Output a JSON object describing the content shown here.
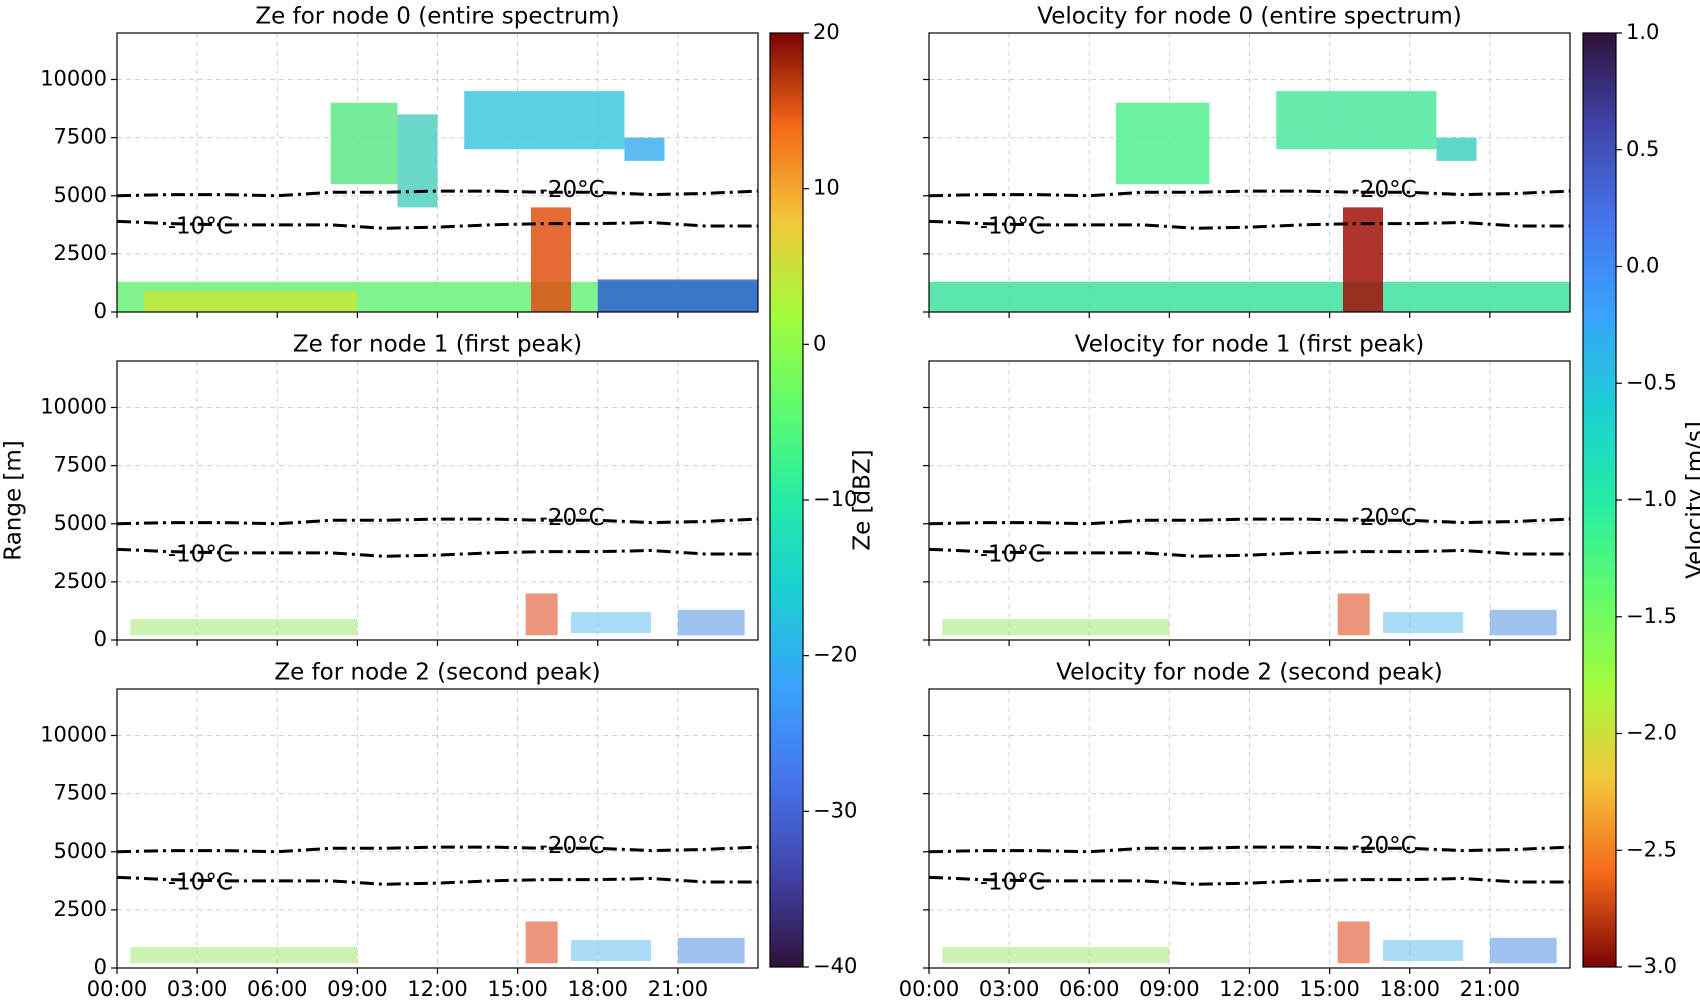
{
  "chart_data": [
    {
      "type": "line",
      "title": "Ze for node 0 (entire spectrum)",
      "xlim": [
        0,
        24
      ],
      "xticks": [
        0,
        3,
        6,
        9,
        12,
        15,
        18,
        21
      ],
      "ylim": [
        0,
        12000
      ],
      "yticks": [
        0,
        2500,
        5000,
        7500,
        10000
      ],
      "grid": true,
      "x": [
        0,
        2,
        4,
        6,
        8,
        10,
        12,
        14,
        16,
        18,
        20,
        22,
        24
      ],
      "series": [
        {
          "name": "-20°C",
          "color": "#000000",
          "values": [
            5000,
            5050,
            5050,
            5000,
            5150,
            5150,
            5200,
            5200,
            5150,
            5150,
            5050,
            5100,
            5200
          ]
        },
        {
          "name": "-10°C",
          "color": "#000000",
          "values": [
            3900,
            3800,
            3750,
            3750,
            3750,
            3600,
            3650,
            3750,
            3800,
            3800,
            3850,
            3700,
            3700
          ]
        }
      ]
    },
    {
      "type": "line",
      "title": "Velocity for node 0 (entire spectrum)",
      "xlim": [
        0,
        24
      ],
      "xticks": [
        0,
        3,
        6,
        9,
        12,
        15,
        18,
        21
      ],
      "ylim": [
        0,
        12000
      ],
      "yticks": [
        0,
        2500,
        5000,
        7500,
        10000
      ],
      "grid": true,
      "x": [
        0,
        2,
        4,
        6,
        8,
        10,
        12,
        14,
        16,
        18,
        20,
        22,
        24
      ],
      "series": [
        {
          "name": "-20°C",
          "color": "#000000",
          "values": [
            5000,
            5050,
            5050,
            5000,
            5150,
            5150,
            5200,
            5200,
            5150,
            5150,
            5050,
            5100,
            5200
          ]
        },
        {
          "name": "-10°C",
          "color": "#000000",
          "values": [
            3900,
            3800,
            3750,
            3750,
            3750,
            3600,
            3650,
            3750,
            3800,
            3800,
            3850,
            3700,
            3700
          ]
        }
      ]
    },
    {
      "type": "line",
      "title": "Ze for node 1 (first peak)",
      "ylabel": "Range [m]",
      "xlim": [
        0,
        24
      ],
      "xticks": [
        0,
        3,
        6,
        9,
        12,
        15,
        18,
        21
      ],
      "ylim": [
        0,
        12000
      ],
      "yticks": [
        0,
        2500,
        5000,
        7500,
        10000
      ],
      "grid": true,
      "x": [
        0,
        2,
        4,
        6,
        8,
        10,
        12,
        14,
        16,
        18,
        20,
        22,
        24
      ],
      "series": [
        {
          "name": "-20°C",
          "color": "#000000",
          "values": [
            5000,
            5050,
            5050,
            5000,
            5150,
            5150,
            5200,
            5200,
            5150,
            5150,
            5050,
            5100,
            5200
          ]
        },
        {
          "name": "-10°C",
          "color": "#000000",
          "values": [
            3900,
            3800,
            3750,
            3750,
            3750,
            3600,
            3650,
            3750,
            3800,
            3800,
            3850,
            3700,
            3700
          ]
        }
      ]
    },
    {
      "type": "line",
      "title": "Velocity for node 1 (first peak)",
      "xlim": [
        0,
        24
      ],
      "xticks": [
        0,
        3,
        6,
        9,
        12,
        15,
        18,
        21
      ],
      "ylim": [
        0,
        12000
      ],
      "yticks": [
        0,
        2500,
        5000,
        7500,
        10000
      ],
      "grid": true,
      "x": [
        0,
        2,
        4,
        6,
        8,
        10,
        12,
        14,
        16,
        18,
        20,
        22,
        24
      ],
      "series": [
        {
          "name": "-20°C",
          "color": "#000000",
          "values": [
            5000,
            5050,
            5050,
            5000,
            5150,
            5150,
            5200,
            5200,
            5150,
            5150,
            5050,
            5100,
            5200
          ]
        },
        {
          "name": "-10°C",
          "color": "#000000",
          "values": [
            3900,
            3800,
            3750,
            3750,
            3750,
            3600,
            3650,
            3750,
            3800,
            3800,
            3850,
            3700,
            3700
          ]
        }
      ]
    },
    {
      "type": "line",
      "title": "Ze for node 2 (second peak)",
      "xlim": [
        0,
        24
      ],
      "xticks": [
        {
          "value": 0,
          "label": "00:00"
        },
        {
          "value": 3,
          "label": "03:00"
        },
        {
          "value": 6,
          "label": "06:00"
        },
        {
          "value": 9,
          "label": "09:00"
        },
        {
          "value": 12,
          "label": "12:00"
        },
        {
          "value": 15,
          "label": "15:00"
        },
        {
          "value": 18,
          "label": "18:00"
        },
        {
          "value": 21,
          "label": "21:00"
        }
      ],
      "ylim": [
        0,
        12000
      ],
      "yticks": [
        0,
        2500,
        5000,
        7500,
        10000
      ],
      "grid": true,
      "x": [
        0,
        2,
        4,
        6,
        8,
        10,
        12,
        14,
        16,
        18,
        20,
        22,
        24
      ],
      "series": [
        {
          "name": "-20°C",
          "color": "#000000",
          "values": [
            5000,
            5050,
            5050,
            5000,
            5150,
            5150,
            5200,
            5200,
            5150,
            5150,
            5050,
            5100,
            5200
          ]
        },
        {
          "name": "-10°C",
          "color": "#000000",
          "values": [
            3900,
            3800,
            3750,
            3750,
            3750,
            3600,
            3650,
            3750,
            3800,
            3800,
            3850,
            3700,
            3700
          ]
        }
      ]
    },
    {
      "type": "line",
      "title": "Velocity for node 2 (second peak)",
      "xlim": [
        0,
        24
      ],
      "xticks": [
        {
          "value": 0,
          "label": "00:00"
        },
        {
          "value": 3,
          "label": "03:00"
        },
        {
          "value": 6,
          "label": "06:00"
        },
        {
          "value": 9,
          "label": "09:00"
        },
        {
          "value": 12,
          "label": "12:00"
        },
        {
          "value": 15,
          "label": "15:00"
        },
        {
          "value": 18,
          "label": "18:00"
        },
        {
          "value": 21,
          "label": "21:00"
        }
      ],
      "ylim": [
        0,
        12000
      ],
      "yticks": [
        0,
        2500,
        5000,
        7500,
        10000
      ],
      "grid": true,
      "x": [
        0,
        2,
        4,
        6,
        8,
        10,
        12,
        14,
        16,
        18,
        20,
        22,
        24
      ],
      "series": [
        {
          "name": "-20°C",
          "color": "#000000",
          "values": [
            5000,
            5050,
            5050,
            5000,
            5150,
            5150,
            5200,
            5200,
            5150,
            5150,
            5050,
            5100,
            5200
          ]
        },
        {
          "name": "-10°C",
          "color": "#000000",
          "values": [
            3900,
            3800,
            3750,
            3750,
            3750,
            3600,
            3650,
            3750,
            3800,
            3800,
            3850,
            3700,
            3700
          ]
        }
      ]
    },
    {
      "type": "colorbar",
      "label": "Ze [dBZ]",
      "ylim": [
        -40,
        20
      ],
      "yticks": [
        {
          "value": -40,
          "label": "−40"
        },
        {
          "value": -30,
          "label": "−30"
        },
        {
          "value": -20,
          "label": "−20"
        },
        {
          "value": -10,
          "label": "−10"
        },
        0,
        10,
        20
      ],
      "reversed": false
    },
    {
      "type": "colorbar",
      "label": "Velocity [m/s]",
      "ylim": [
        -3,
        1
      ],
      "yticks": [
        {
          "value": -3,
          "label": "−3.0"
        },
        {
          "value": -2.5,
          "label": "−2.5"
        },
        {
          "value": -2,
          "label": "−2.0"
        },
        {
          "value": -1.5,
          "label": "−1.5"
        },
        {
          "value": -1,
          "label": "−1.0"
        },
        {
          "value": -0.5,
          "label": "−0.5"
        },
        {
          "value": 0,
          "label": "0.0"
        },
        0.5,
        {
          "value": 1,
          "label": "1.0"
        }
      ],
      "reversed": true
    }
  ]
}
